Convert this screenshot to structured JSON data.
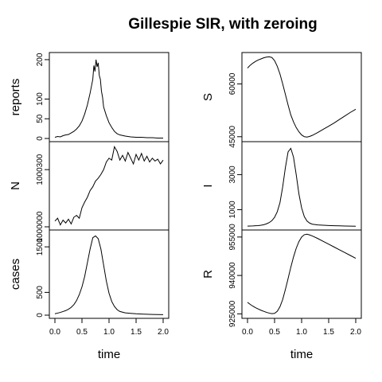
{
  "title": "Gillespie SIR, with zeroing",
  "chart_data": [
    {
      "type": "line",
      "column": "left",
      "row": 0,
      "ylabel": "reports",
      "xlim": [
        0,
        2
      ],
      "ylim": [
        0,
        210
      ],
      "yticks": [
        0,
        50,
        100,
        200
      ],
      "x": [
        0.0,
        0.05,
        0.1,
        0.15,
        0.2,
        0.25,
        0.3,
        0.35,
        0.4,
        0.45,
        0.5,
        0.55,
        0.6,
        0.65,
        0.7,
        0.72,
        0.74,
        0.76,
        0.78,
        0.8,
        0.82,
        0.84,
        0.86,
        0.88,
        0.9,
        0.95,
        1.0,
        1.05,
        1.1,
        1.15,
        1.2,
        1.3,
        1.4,
        1.5,
        1.6,
        1.7,
        1.8,
        1.9,
        2.0
      ],
      "y": [
        3,
        5,
        4,
        7,
        9,
        10,
        14,
        18,
        24,
        32,
        44,
        62,
        85,
        115,
        150,
        185,
        170,
        200,
        182,
        192,
        160,
        150,
        120,
        105,
        80,
        58,
        40,
        28,
        18,
        12,
        9,
        6,
        4,
        3,
        3,
        2,
        2,
        1,
        1
      ]
    },
    {
      "type": "line",
      "column": "left",
      "row": 1,
      "ylabel": "N",
      "xlim": [
        0,
        2
      ],
      "ylim": [
        1000000,
        1000430
      ],
      "yticks": [
        1000000,
        1000300
      ],
      "x": [
        0.0,
        0.05,
        0.1,
        0.15,
        0.2,
        0.25,
        0.3,
        0.35,
        0.4,
        0.45,
        0.5,
        0.55,
        0.6,
        0.65,
        0.7,
        0.75,
        0.8,
        0.85,
        0.9,
        0.95,
        1.0,
        1.05,
        1.1,
        1.15,
        1.2,
        1.25,
        1.3,
        1.35,
        1.4,
        1.45,
        1.5,
        1.55,
        1.6,
        1.65,
        1.7,
        1.75,
        1.8,
        1.85,
        1.9,
        1.95,
        2.0
      ],
      "y": [
        1000030,
        1000045,
        1000010,
        1000035,
        1000020,
        1000040,
        1000015,
        1000050,
        1000060,
        1000045,
        1000100,
        1000130,
        1000155,
        1000190,
        1000210,
        1000240,
        1000255,
        1000275,
        1000300,
        1000340,
        1000360,
        1000350,
        1000420,
        1000395,
        1000350,
        1000375,
        1000345,
        1000390,
        1000360,
        1000330,
        1000380,
        1000350,
        1000385,
        1000345,
        1000370,
        1000340,
        1000360,
        1000345,
        1000355,
        1000330,
        1000350
      ]
    },
    {
      "type": "line",
      "column": "left",
      "row": 2,
      "ylabel": "cases",
      "xlim": [
        0,
        2
      ],
      "ylim": [
        0,
        1800
      ],
      "yticks": [
        0,
        500,
        1500
      ],
      "x": [
        0.0,
        0.05,
        0.1,
        0.15,
        0.2,
        0.25,
        0.3,
        0.35,
        0.4,
        0.45,
        0.5,
        0.55,
        0.6,
        0.65,
        0.7,
        0.75,
        0.8,
        0.85,
        0.9,
        0.95,
        1.0,
        1.05,
        1.1,
        1.15,
        1.2,
        1.3,
        1.4,
        1.5,
        1.6,
        1.7,
        1.8,
        1.9,
        2.0
      ],
      "y": [
        30,
        45,
        60,
        80,
        100,
        130,
        170,
        230,
        320,
        450,
        620,
        850,
        1150,
        1450,
        1700,
        1740,
        1680,
        1450,
        1100,
        750,
        480,
        300,
        190,
        120,
        80,
        50,
        40,
        30,
        25,
        20,
        15,
        12,
        10
      ]
    },
    {
      "type": "line",
      "column": "right",
      "row": 0,
      "ylabel": "S",
      "xlim": [
        0,
        2
      ],
      "ylim": [
        44500,
        68000
      ],
      "yticks": [
        45000,
        60000
      ],
      "x": [
        0.0,
        0.05,
        0.1,
        0.15,
        0.2,
        0.25,
        0.3,
        0.35,
        0.4,
        0.45,
        0.5,
        0.55,
        0.6,
        0.65,
        0.7,
        0.75,
        0.8,
        0.85,
        0.9,
        0.95,
        1.0,
        1.05,
        1.1,
        1.15,
        1.2,
        1.3,
        1.4,
        1.5,
        1.6,
        1.7,
        1.8,
        1.9,
        2.0
      ],
      "y": [
        64500,
        65300,
        65900,
        66400,
        66800,
        67100,
        67400,
        67600,
        67700,
        67500,
        66600,
        65000,
        62800,
        60000,
        57000,
        54000,
        51200,
        49200,
        47600,
        46400,
        45500,
        45000,
        44900,
        45100,
        45400,
        46200,
        47100,
        48000,
        48900,
        49900,
        50900,
        51900,
        52800
      ]
    },
    {
      "type": "line",
      "column": "right",
      "row": 1,
      "ylabel": "I",
      "xlim": [
        0,
        2
      ],
      "ylim": [
        20,
        4700
      ],
      "yticks": [
        1000,
        3000
      ],
      "x": [
        0.0,
        0.05,
        0.1,
        0.15,
        0.2,
        0.25,
        0.3,
        0.35,
        0.4,
        0.45,
        0.5,
        0.55,
        0.6,
        0.65,
        0.7,
        0.75,
        0.8,
        0.85,
        0.9,
        0.95,
        1.0,
        1.05,
        1.1,
        1.15,
        1.2,
        1.3,
        1.4,
        1.5,
        1.6,
        1.7,
        1.8,
        1.9,
        2.0
      ],
      "y": [
        60,
        65,
        70,
        80,
        90,
        110,
        140,
        190,
        260,
        370,
        560,
        880,
        1400,
        2300,
        3400,
        4300,
        4500,
        4000,
        3000,
        1900,
        1100,
        600,
        350,
        230,
        170,
        130,
        110,
        95,
        85,
        75,
        65,
        60,
        55
      ]
    },
    {
      "type": "line",
      "column": "right",
      "row": 2,
      "ylabel": "R",
      "xlim": [
        0,
        2
      ],
      "ylim": [
        924500,
        956500
      ],
      "yticks": [
        925000,
        940000,
        955000
      ],
      "x": [
        0.0,
        0.05,
        0.1,
        0.15,
        0.2,
        0.25,
        0.3,
        0.35,
        0.4,
        0.45,
        0.5,
        0.55,
        0.6,
        0.65,
        0.7,
        0.75,
        0.8,
        0.85,
        0.9,
        0.95,
        1.0,
        1.05,
        1.1,
        1.15,
        1.2,
        1.3,
        1.4,
        1.5,
        1.6,
        1.7,
        1.8,
        1.9,
        2.0
      ],
      "y": [
        929500,
        928700,
        928000,
        927400,
        926900,
        926400,
        926000,
        925600,
        925300,
        925100,
        925200,
        926000,
        927800,
        930600,
        934500,
        938800,
        943200,
        947200,
        950600,
        953200,
        955000,
        955900,
        956100,
        955800,
        955400,
        954400,
        953300,
        952200,
        951100,
        950000,
        948900,
        947800,
        946700
      ]
    }
  ],
  "axes": {
    "xlabel": "time",
    "xticks": [
      0.0,
      0.5,
      1.0,
      1.5,
      2.0
    ],
    "xtick_labels": [
      "0.0",
      "0.5",
      "1.0",
      "1.5",
      "2.0"
    ]
  }
}
